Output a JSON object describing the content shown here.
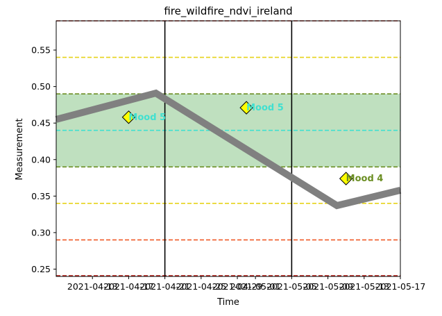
{
  "chart_data": {
    "type": "line",
    "title": "fire_wildfire_ndvi_ireland",
    "xlabel": "Time",
    "ylabel": "Measurement",
    "x_range": [
      "2021-04-09",
      "2021-05-17"
    ],
    "ylim": [
      0.24,
      0.59
    ],
    "x_ticks": [
      "2021-04-13",
      "2021-04-17",
      "2021-04-21",
      "2021-04-25",
      "2021-04-29",
      "2021-05-01",
      "2021-05-05",
      "2021-05-09",
      "2021-05-13",
      "2021-05-17"
    ],
    "y_ticks": [
      "0.25",
      "0.30",
      "0.35",
      "0.40",
      "0.45",
      "0.50",
      "0.55"
    ],
    "y_tick_values": [
      0.25,
      0.3,
      0.35,
      0.4,
      0.45,
      0.5,
      0.55
    ],
    "series": [
      {
        "color": "#808080",
        "x": [
          "2021-04-09",
          "2021-04-20",
          "2021-05-10",
          "2021-05-17"
        ],
        "y": [
          0.455,
          0.491,
          0.337,
          0.358
        ]
      }
    ],
    "band": {
      "y0": 0.39,
      "y1": 0.49,
      "color": "#bfe0bf",
      "edge_color": "#6b8e23"
    },
    "hlines": [
      {
        "y": 0.59,
        "color": "#c0302a"
      },
      {
        "y": 0.54,
        "color": "#e6d31a"
      },
      {
        "y": 0.49,
        "color": "#6b8e23"
      },
      {
        "y": 0.44,
        "color": "#40e0d0"
      },
      {
        "y": 0.39,
        "color": "#6b8e23"
      },
      {
        "y": 0.34,
        "color": "#e6d31a"
      },
      {
        "y": 0.29,
        "color": "#f05a28"
      },
      {
        "y": 0.241,
        "color": "#c0302a"
      }
    ],
    "vlines": [
      "2021-04-21",
      "2021-05-05"
    ],
    "annotations": [
      {
        "x": "2021-04-17",
        "y": 0.458,
        "text": "Mood 5",
        "color": "#40e0d0"
      },
      {
        "x": "2021-04-30",
        "y": 0.471,
        "text": "Mood 5",
        "color": "#40e0d0"
      },
      {
        "x": "2021-05-11",
        "y": 0.374,
        "text": "Mood 4",
        "color": "#6b8e23"
      }
    ],
    "marker_color": "#ffff00",
    "grid": false,
    "legend": "none"
  }
}
